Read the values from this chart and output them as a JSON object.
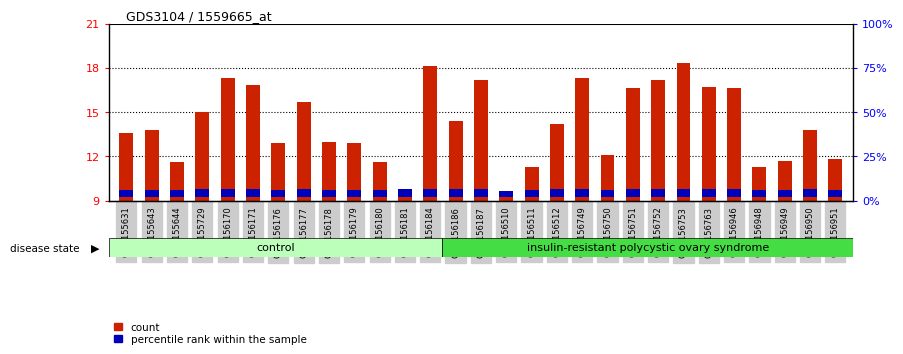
{
  "title": "GDS3104 / 1559665_at",
  "samples": [
    "GSM155631",
    "GSM155643",
    "GSM155644",
    "GSM155729",
    "GSM156170",
    "GSM156171",
    "GSM156176",
    "GSM156177",
    "GSM156178",
    "GSM156179",
    "GSM156180",
    "GSM156181",
    "GSM156184",
    "GSM156186",
    "GSM156187",
    "GSM156510",
    "GSM156511",
    "GSM156512",
    "GSM156749",
    "GSM156750",
    "GSM156751",
    "GSM156752",
    "GSM156753",
    "GSM156763",
    "GSM156946",
    "GSM156948",
    "GSM156949",
    "GSM156950",
    "GSM156951"
  ],
  "red_values": [
    13.6,
    13.8,
    11.6,
    15.0,
    17.3,
    16.8,
    12.9,
    15.7,
    13.0,
    12.9,
    11.6,
    9.5,
    18.1,
    14.4,
    17.2,
    9.4,
    11.3,
    14.2,
    17.3,
    12.1,
    16.6,
    17.2,
    18.3,
    16.7,
    16.6,
    11.3,
    11.7,
    13.8,
    11.8
  ],
  "blue_values": [
    0.45,
    0.45,
    0.45,
    0.5,
    0.55,
    0.5,
    0.48,
    0.52,
    0.48,
    0.48,
    0.45,
    0.52,
    0.52,
    0.5,
    0.52,
    0.38,
    0.48,
    0.5,
    0.5,
    0.48,
    0.52,
    0.52,
    0.52,
    0.52,
    0.52,
    0.48,
    0.48,
    0.5,
    0.48
  ],
  "control_count": 13,
  "disease_count": 16,
  "y_min": 9,
  "y_max": 21,
  "y_ticks_left": [
    9,
    12,
    15,
    18,
    21
  ],
  "y_ticks_right_labels": [
    "0%",
    "25%",
    "50%",
    "75%",
    "100%"
  ],
  "bar_color_red": "#CC2200",
  "bar_color_blue": "#0000BB",
  "control_label": "control",
  "disease_label": "insulin-resistant polycystic ovary syndrome",
  "control_bg": "#BBFFBB",
  "disease_bg": "#44DD44",
  "bar_width": 0.55,
  "dotted_lines": [
    12,
    15,
    18
  ],
  "tick_label_bg": "#CCCCCC"
}
